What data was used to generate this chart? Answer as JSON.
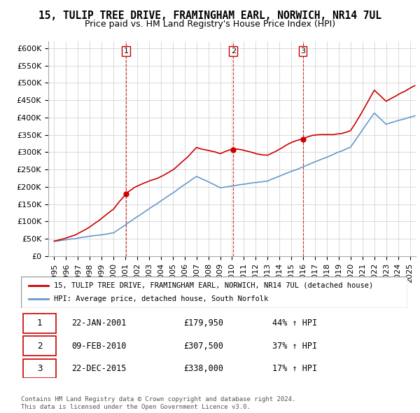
{
  "title": "15, TULIP TREE DRIVE, FRAMINGHAM EARL, NORWICH, NR14 7UL",
  "subtitle": "Price paid vs. HM Land Registry's House Price Index (HPI)",
  "red_line_label": "15, TULIP TREE DRIVE, FRAMINGHAM EARL, NORWICH, NR14 7UL (detached house)",
  "blue_line_label": "HPI: Average price, detached house, South Norfolk",
  "transactions": [
    {
      "num": 1,
      "date": "22-JAN-2001",
      "price": "£179,950",
      "change": "44% ↑ HPI",
      "year": 2001.05
    },
    {
      "num": 2,
      "date": "09-FEB-2010",
      "price": "£307,500",
      "change": "37% ↑ HPI",
      "year": 2010.1
    },
    {
      "num": 3,
      "date": "22-DEC-2015",
      "price": "£338,000",
      "change": "17% ↑ HPI",
      "year": 2015.97
    }
  ],
  "transaction_prices": [
    179950,
    307500,
    338000
  ],
  "footer": "Contains HM Land Registry data © Crown copyright and database right 2024.\nThis data is licensed under the Open Government Licence v3.0.",
  "ylim": [
    0,
    620000
  ],
  "yticks": [
    0,
    50000,
    100000,
    150000,
    200000,
    250000,
    300000,
    350000,
    400000,
    450000,
    500000,
    550000,
    600000
  ],
  "xlim_start": 1994.5,
  "xlim_end": 2025.5,
  "background_color": "#ffffff",
  "grid_color": "#cccccc",
  "red_color": "#cc0000",
  "blue_color": "#6699cc"
}
